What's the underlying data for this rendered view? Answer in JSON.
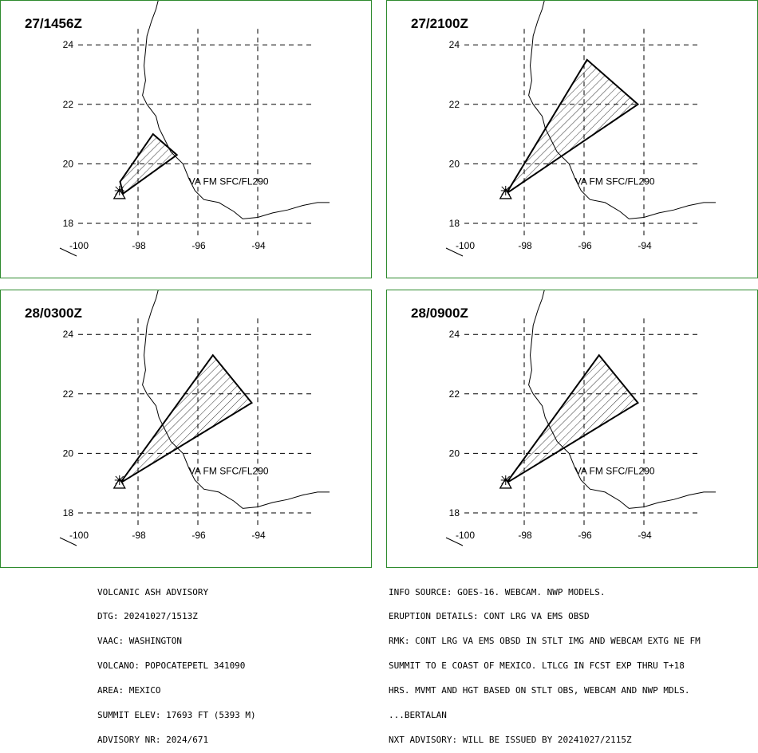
{
  "panels": [
    {
      "title": "27/1456Z",
      "label": "VA FM SFC/FL290",
      "ash_polygon": [
        [
          -98.6,
          19.4
        ],
        [
          -97.5,
          21.0
        ],
        [
          -96.7,
          20.3
        ],
        [
          -98.5,
          19.0
        ]
      ]
    },
    {
      "title": "27/2100Z",
      "label": "VA FM SFC/FL290",
      "ash_polygon": [
        [
          -98.6,
          19.0
        ],
        [
          -95.9,
          23.5
        ],
        [
          -94.2,
          22.0
        ]
      ]
    },
    {
      "title": "28/0300Z",
      "label": "VA FM SFC/FL290",
      "ash_polygon": [
        [
          -98.6,
          19.0
        ],
        [
          -95.5,
          23.3
        ],
        [
          -94.2,
          21.7
        ]
      ]
    },
    {
      "title": "28/0900Z",
      "label": "VA FM SFC/FL290",
      "ash_polygon": [
        [
          -98.6,
          19.0
        ],
        [
          -95.5,
          23.3
        ],
        [
          -94.2,
          21.7
        ]
      ]
    }
  ],
  "axes": {
    "lat_ticks": [
      24,
      22,
      20,
      18
    ],
    "lon_ticks": [
      -100,
      -98,
      -96,
      -94
    ]
  },
  "volcano": {
    "name": "POPOCATEPETL",
    "lon": -98.62,
    "lat": 19.02
  },
  "coastline": [
    [
      -97.3,
      25.6
    ],
    [
      -97.4,
      25.2
    ],
    [
      -97.55,
      24.8
    ],
    [
      -97.7,
      24.3
    ],
    [
      -97.75,
      23.8
    ],
    [
      -97.8,
      23.3
    ],
    [
      -97.75,
      22.8
    ],
    [
      -97.85,
      22.3
    ],
    [
      -97.7,
      22.0
    ],
    [
      -97.4,
      21.6
    ],
    [
      -97.3,
      21.2
    ],
    [
      -97.1,
      20.8
    ],
    [
      -96.9,
      20.4
    ],
    [
      -96.5,
      20.0
    ],
    [
      -96.3,
      19.5
    ],
    [
      -96.1,
      19.1
    ],
    [
      -95.8,
      18.8
    ],
    [
      -95.3,
      18.7
    ],
    [
      -94.8,
      18.4
    ],
    [
      -94.5,
      18.15
    ],
    [
      -94.0,
      18.2
    ],
    [
      -93.5,
      18.35
    ],
    [
      -93.0,
      18.45
    ],
    [
      -92.5,
      18.6
    ],
    [
      -92.0,
      18.7
    ],
    [
      -91.6,
      18.7
    ]
  ],
  "info_left": [
    "VOLCANIC ASH ADVISORY",
    "DTG: 20241027/1513Z",
    "VAAC: WASHINGTON",
    "VOLCANO: POPOCATEPETL 341090",
    "AREA: MEXICO",
    "SUMMIT ELEV: 17693 FT (5393 M)",
    "ADVISORY NR: 2024/671"
  ],
  "info_right": [
    "INFO SOURCE: GOES-16. WEBCAM. NWP MODELS.",
    "ERUPTION DETAILS: CONT LRG VA EMS OBSD",
    "RMK: CONT LRG VA EMS OBSD IN STLT IMG AND WEBCAM EXTG NE FM",
    "SUMMIT TO E COAST OF MEXICO. LTLCG IN FCST EXP THRU T+18",
    "HRS. MVMT AND HGT BASED ON STLT OBS, WEBCAM AND NWP MDLS.",
    "...BERTALAN",
    "NXT ADVISORY: WILL BE ISSUED BY 20241027/2115Z"
  ],
  "colors": {
    "border": "#2e8b2e",
    "line": "#000000"
  }
}
